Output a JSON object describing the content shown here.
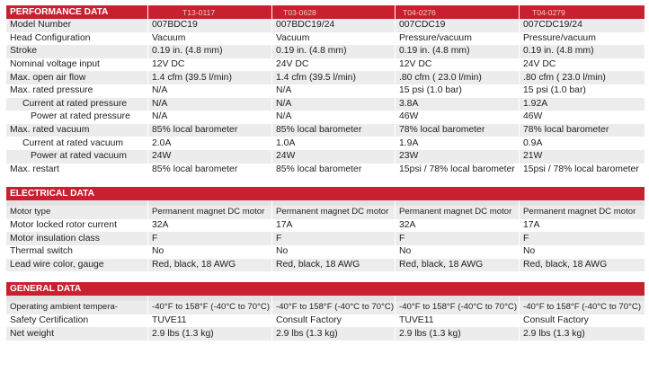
{
  "performance": {
    "title": "PERFORMANCE DATA",
    "codes": [
      "T13-0117",
      "T03-0628",
      "T04-0276",
      "T04-0279"
    ],
    "rows": [
      {
        "label": "Model Number",
        "indent": 0,
        "values": [
          "007BDC19",
          "007BDC19/24",
          "007CDC19",
          "007CDC19/24"
        ]
      },
      {
        "label": "Head Configuration",
        "indent": 0,
        "values": [
          "Vacuum",
          "Vacuum",
          "Pressure/vacuum",
          "Pressure/vacuum"
        ]
      },
      {
        "label": "Stroke",
        "indent": 0,
        "values": [
          "0.19 in. (4.8 mm)",
          "0.19 in. (4.8 mm)",
          "0.19 in. (4.8 mm)",
          "0.19 in. (4.8 mm)"
        ]
      },
      {
        "label": "Nominal voltage input",
        "indent": 0,
        "values": [
          "12V DC",
          "24V DC",
          "12V DC",
          "24V DC"
        ]
      },
      {
        "label": "Max. open air flow",
        "indent": 0,
        "values": [
          "1.4 cfm (39.5 l/min)",
          "1.4 cfm (39.5 l/min)",
          ".80 cfm ( 23.0 l/min)",
          ".80 cfm ( 23.0 l/min)"
        ]
      },
      {
        "label": "Max. rated pressure",
        "indent": 0,
        "values": [
          "N/A",
          "N/A",
          "15 psi (1.0 bar)",
          "15 psi (1.0 bar)"
        ]
      },
      {
        "label": "Current at rated pressure",
        "indent": 1,
        "values": [
          "N/A",
          "N/A",
          "3.8A",
          "1.92A"
        ]
      },
      {
        "label": "Power at rated pressure",
        "indent": 2,
        "values": [
          "N/A",
          "N/A",
          "46W",
          "46W"
        ]
      },
      {
        "label": "Max. rated vacuum",
        "indent": 0,
        "values": [
          "85% local barometer",
          "85% local barometer",
          "78% local barometer",
          "78% local barometer"
        ]
      },
      {
        "label": "Current at rated vacuum",
        "indent": 1,
        "values": [
          "2.0A",
          "1.0A",
          "1.9A",
          "0.9A"
        ]
      },
      {
        "label": "Power at rated vacuum",
        "indent": 2,
        "values": [
          "24W",
          "24W",
          "23W",
          "21W"
        ]
      },
      {
        "label": "Max. restart",
        "indent": 0,
        "values": [
          "85% local barometer",
          "85% local barometer",
          "15psi / 78% local barometer",
          "15psi / 78% local barometer"
        ]
      }
    ]
  },
  "electrical": {
    "title": "ELECTRICAL DATA",
    "rows": [
      {
        "label": "Motor type",
        "values": [
          "Permanent magnet DC motor",
          "Permanent magnet DC motor",
          "Permanent magnet DC motor",
          "Permanent magnet DC motor"
        ]
      },
      {
        "label": "Motor locked rotor current",
        "values": [
          "32A",
          "17A",
          "32A",
          "17A"
        ]
      },
      {
        "label": "Motor insulation class",
        "values": [
          "F",
          "F",
          "F",
          "F"
        ]
      },
      {
        "label": "Thermal switch",
        "values": [
          "No",
          "No",
          "No",
          "No"
        ]
      },
      {
        "label": "Lead wire color, gauge",
        "values": [
          "Red, black, 18 AWG",
          "Red, black, 18 AWG",
          "Red, black, 18 AWG",
          "Red, black, 18 AWG"
        ]
      }
    ]
  },
  "general": {
    "title": "GENERAL DATA",
    "rows": [
      {
        "label": "Operating ambient tempera-",
        "values": [
          "-40°F to 158°F (-40°C to 70°C)",
          "-40°F to 158°F (-40°C to 70°C)",
          "-40°F to 158°F (-40°C to 70°C)",
          "-40°F to 158°F (-40°C to 70°C)"
        ]
      },
      {
        "label": "Safety Certification",
        "values": [
          "TUVE11",
          "Consult Factory",
          "TUVE11",
          "Consult Factory"
        ]
      },
      {
        "label": "Net weight",
        "values": [
          "2.9 lbs (1.3 kg)",
          "2.9 lbs (1.3 kg)",
          "2.9 lbs (1.3 kg)",
          "2.9 lbs (1.3 kg)"
        ]
      }
    ]
  }
}
